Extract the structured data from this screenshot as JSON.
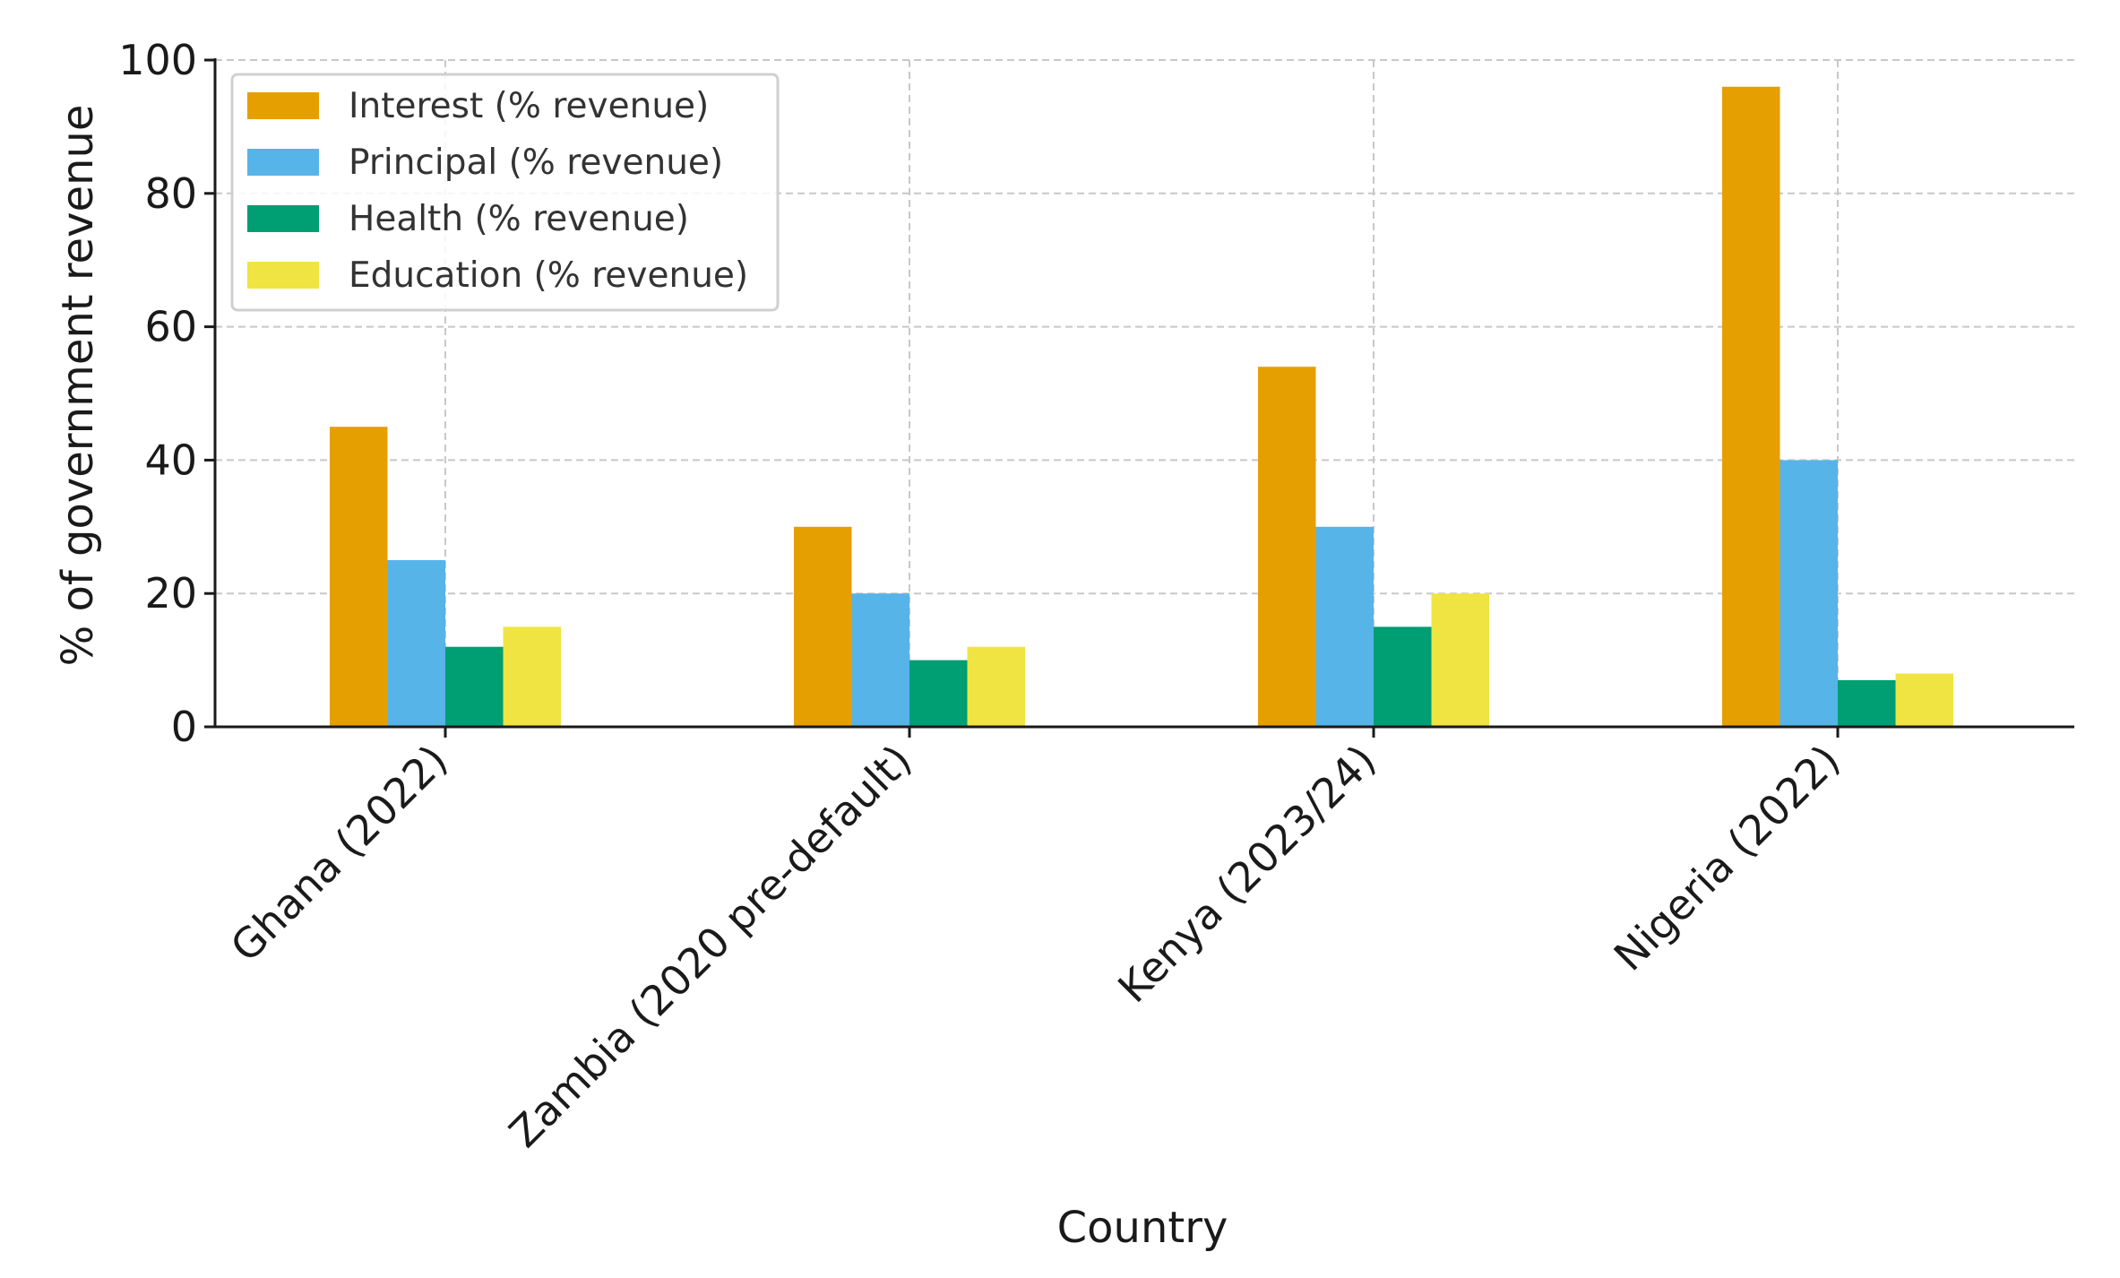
{
  "chart_data": {
    "type": "bar",
    "title": "",
    "xlabel": "Country",
    "ylabel": "% of government revenue",
    "categories": [
      "Ghana (2022)",
      "Zambia (2020 pre-default)",
      "Kenya (2023/24)",
      "Nigeria (2022)"
    ],
    "series": [
      {
        "name": "Interest (% revenue)",
        "color": "#E69F00",
        "values": [
          45,
          30,
          54,
          96
        ]
      },
      {
        "name": "Principal (% revenue)",
        "color": "#56B4E9",
        "values": [
          25,
          20,
          30,
          40
        ]
      },
      {
        "name": "Health (% revenue)",
        "color": "#009E73",
        "values": [
          12,
          10,
          15,
          7
        ]
      },
      {
        "name": "Education (% revenue)",
        "color": "#F0E442",
        "values": [
          15,
          12,
          20,
          8
        ]
      }
    ],
    "ylim": [
      0,
      100
    ],
    "yticks": [
      "0",
      "20",
      "40",
      "60",
      "80",
      "100"
    ],
    "grid": true,
    "legend_position": "top-left"
  }
}
